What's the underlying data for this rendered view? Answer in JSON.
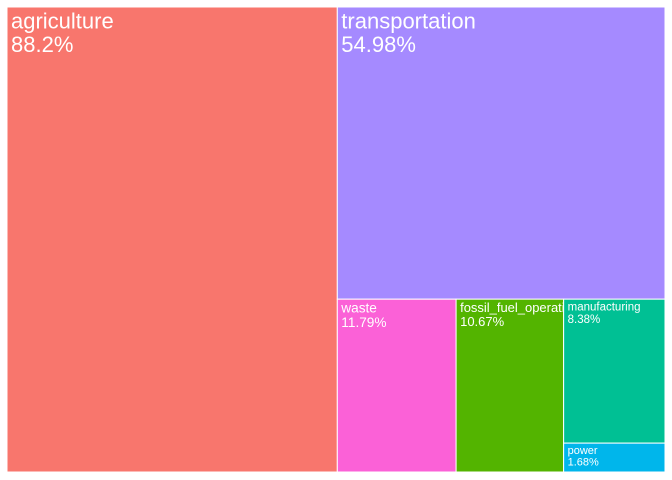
{
  "chart_data": {
    "type": "treemap",
    "title": "",
    "tiles": [
      {
        "name": "agriculture",
        "label": "88.2%",
        "value": 88.2,
        "color": "#F8766D"
      },
      {
        "name": "transportation",
        "label": "54.98%",
        "value": 54.98,
        "color": "#A58AFF"
      },
      {
        "name": "waste",
        "label": "11.79%",
        "value": 11.79,
        "color": "#FB61D7"
      },
      {
        "name": "fossil_fuel_operations",
        "label": "10.67%",
        "value": 10.67,
        "color": "#53B400"
      },
      {
        "name": "manufacturing",
        "label": "8.38%",
        "value": 8.38,
        "color": "#00C094"
      },
      {
        "name": "power",
        "label": "1.68%",
        "value": 1.68,
        "color": "#00B6EB"
      }
    ]
  }
}
